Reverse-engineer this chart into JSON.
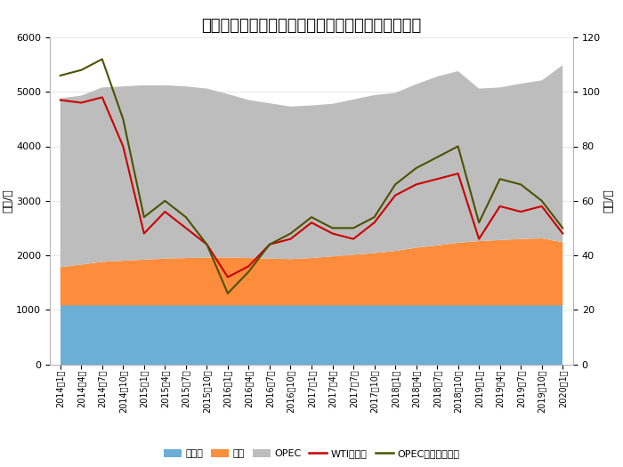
{
  "title": "近年各主要原油产地产量变化及国际油价走势示意图",
  "ylabel_left": "万桶/日",
  "ylabel_right": "美元/桶",
  "ylim_left": [
    0,
    6000
  ],
  "ylim_right": [
    0,
    120
  ],
  "yticks_left": [
    0,
    1000,
    2000,
    3000,
    4000,
    5000,
    6000
  ],
  "yticks_right": [
    0,
    20,
    40,
    60,
    80,
    100,
    120
  ],
  "x_labels": [
    "2014年1月",
    "2014年4月",
    "2014年7月",
    "2014年10月",
    "2015年1月",
    "2015年4月",
    "2015年7月",
    "2015年10月",
    "2016年1月",
    "2016年4月",
    "2016年7月",
    "2016年10月",
    "2017年1月",
    "2017年4月",
    "2017年7月",
    "2017年10月",
    "2018年1月",
    "2018年4月",
    "2018年7月",
    "2018年10月",
    "2019年1月",
    "2019年4月",
    "2019年7月",
    "2019年10月",
    "2020年1月"
  ],
  "russia": [
    1080,
    1080,
    1080,
    1080,
    1080,
    1080,
    1080,
    1080,
    1080,
    1080,
    1080,
    1080,
    1080,
    1080,
    1080,
    1080,
    1080,
    1080,
    1080,
    1080,
    1080,
    1080,
    1080,
    1080,
    1080
  ],
  "usa": [
    700,
    750,
    800,
    820,
    840,
    860,
    870,
    880,
    880,
    870,
    860,
    850,
    870,
    900,
    930,
    960,
    1000,
    1060,
    1100,
    1150,
    1180,
    1200,
    1220,
    1230,
    1160
  ],
  "opec": [
    3100,
    3100,
    3200,
    3200,
    3200,
    3180,
    3150,
    3100,
    3000,
    2900,
    2850,
    2800,
    2800,
    2800,
    2850,
    2900,
    2900,
    3000,
    3100,
    3150,
    2800,
    2800,
    2850,
    2900,
    3250
  ],
  "wti": [
    97,
    96,
    98,
    80,
    48,
    56,
    50,
    44,
    32,
    36,
    44,
    46,
    52,
    48,
    46,
    52,
    62,
    66,
    68,
    70,
    46,
    58,
    56,
    58,
    48
  ],
  "opec_basket": [
    106,
    108,
    112,
    90,
    54,
    60,
    54,
    44,
    26,
    34,
    44,
    48,
    54,
    50,
    50,
    54,
    66,
    72,
    76,
    80,
    52,
    68,
    66,
    60,
    50
  ],
  "color_russia": "#6baed6",
  "color_usa": "#fd8d3c",
  "color_opec": "#bdbdbd",
  "color_wti": "#cc0000",
  "color_opec_basket": "#4d5200",
  "legend_labels": [
    "俄罗斯",
    "美国",
    "OPEC",
    "WTI月均价",
    "OPEC一揽子月均价"
  ],
  "background_color": "#ffffff",
  "title_fontsize": 13,
  "tick_fontsize": 7,
  "ylabel_fontsize": 9
}
